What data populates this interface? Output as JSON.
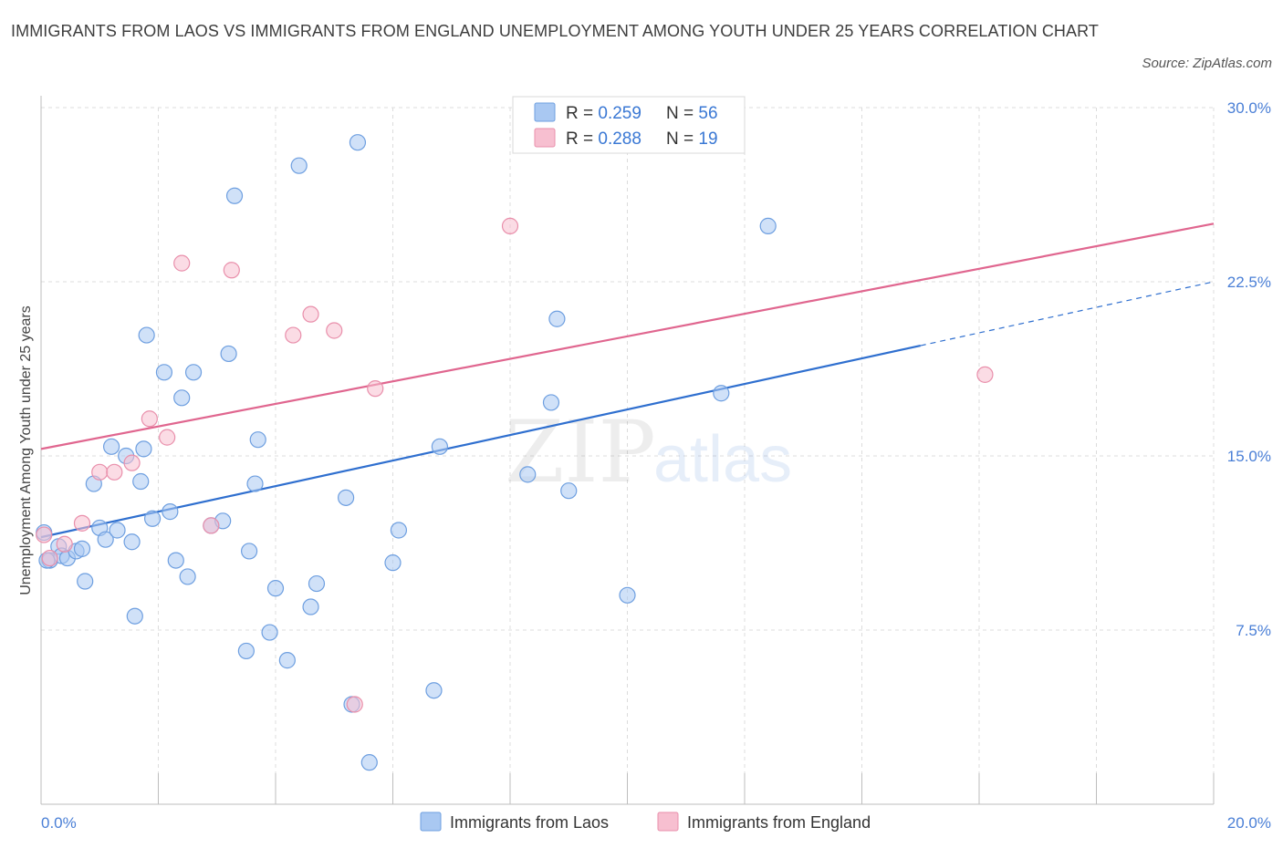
{
  "title": "IMMIGRANTS FROM LAOS VS IMMIGRANTS FROM ENGLAND UNEMPLOYMENT AMONG YOUTH UNDER 25 YEARS CORRELATION CHART",
  "source": "Source: ZipAtlas.com",
  "watermark": {
    "zip": "ZIP",
    "atlas": "atlas"
  },
  "colors": {
    "laos_fill": "#a9c8f2",
    "laos_stroke": "#6e9fe0",
    "laos_line": "#2f6fcf",
    "england_fill": "#f7bfd0",
    "england_stroke": "#e98fab",
    "england_line": "#e0668f",
    "tick_label": "#4a7fd6",
    "grid": "#dcdcdc"
  },
  "legend": {
    "rows": [
      {
        "series": "laos",
        "r_label": "R = ",
        "r_value": "0.259",
        "n_label": "N = ",
        "n_value": "56"
      },
      {
        "series": "england",
        "r_label": "R = ",
        "r_value": "0.288",
        "n_label": "N = ",
        "n_value": "19"
      }
    ]
  },
  "bottom_legend": [
    "Immigrants from Laos",
    "Immigrants from England"
  ],
  "chart_data": {
    "type": "scatter",
    "title": "IMMIGRANTS FROM LAOS VS IMMIGRANTS FROM ENGLAND UNEMPLOYMENT AMONG YOUTH UNDER 25 YEARS CORRELATION CHART",
    "xlabel": "",
    "ylabel": "Unemployment Among Youth under 25 years",
    "xlim": [
      0,
      20
    ],
    "ylim": [
      0,
      30
    ],
    "x_tick_labels": [
      "0.0%",
      "20.0%"
    ],
    "y_ticks": [
      7.5,
      15.0,
      22.5,
      30.0
    ],
    "y_tick_labels": [
      "7.5%",
      "15.0%",
      "22.5%",
      "30.0%"
    ],
    "grid": true,
    "legend_position": "top-center",
    "series": [
      {
        "name": "Immigrants from Laos",
        "key": "laos",
        "points": [
          [
            0.05,
            11.7
          ],
          [
            0.15,
            10.5
          ],
          [
            0.3,
            11.1
          ],
          [
            0.35,
            10.7
          ],
          [
            0.45,
            10.6
          ],
          [
            0.6,
            10.9
          ],
          [
            0.7,
            11.0
          ],
          [
            0.75,
            9.6
          ],
          [
            0.9,
            13.8
          ],
          [
            1.0,
            11.9
          ],
          [
            1.1,
            11.4
          ],
          [
            1.2,
            15.4
          ],
          [
            1.3,
            11.8
          ],
          [
            1.45,
            15.0
          ],
          [
            1.55,
            11.3
          ],
          [
            1.6,
            8.1
          ],
          [
            1.7,
            13.9
          ],
          [
            1.75,
            15.3
          ],
          [
            1.8,
            20.2
          ],
          [
            1.9,
            12.3
          ],
          [
            2.1,
            18.6
          ],
          [
            2.2,
            12.6
          ],
          [
            2.3,
            10.5
          ],
          [
            2.4,
            17.5
          ],
          [
            2.5,
            9.8
          ],
          [
            2.6,
            18.6
          ],
          [
            2.9,
            12.0
          ],
          [
            3.1,
            12.2
          ],
          [
            3.2,
            19.4
          ],
          [
            3.3,
            26.2
          ],
          [
            3.5,
            6.6
          ],
          [
            3.55,
            10.9
          ],
          [
            3.65,
            13.8
          ],
          [
            3.7,
            15.7
          ],
          [
            3.9,
            7.4
          ],
          [
            4.0,
            9.3
          ],
          [
            4.2,
            6.2
          ],
          [
            4.4,
            27.5
          ],
          [
            4.6,
            8.5
          ],
          [
            4.7,
            9.5
          ],
          [
            5.2,
            13.2
          ],
          [
            5.3,
            4.3
          ],
          [
            5.4,
            28.5
          ],
          [
            5.6,
            1.8
          ],
          [
            6.0,
            10.4
          ],
          [
            6.1,
            11.8
          ],
          [
            6.7,
            4.9
          ],
          [
            6.8,
            15.4
          ],
          [
            8.3,
            14.2
          ],
          [
            8.7,
            17.3
          ],
          [
            8.8,
            20.9
          ],
          [
            9.0,
            13.5
          ],
          [
            10.0,
            9.0
          ],
          [
            11.6,
            17.7
          ],
          [
            12.4,
            24.9
          ],
          [
            0.1,
            10.5
          ]
        ],
        "trend": {
          "x": [
            0,
            20
          ],
          "y": [
            11.5,
            22.5
          ],
          "solid_until_x": 15.0
        }
      },
      {
        "name": "Immigrants from England",
        "key": "england",
        "points": [
          [
            0.05,
            11.6
          ],
          [
            0.15,
            10.6
          ],
          [
            0.4,
            11.2
          ],
          [
            0.7,
            12.1
          ],
          [
            1.0,
            14.3
          ],
          [
            1.25,
            14.3
          ],
          [
            1.55,
            14.7
          ],
          [
            1.85,
            16.6
          ],
          [
            2.15,
            15.8
          ],
          [
            2.4,
            23.3
          ],
          [
            2.9,
            12.0
          ],
          [
            3.25,
            23.0
          ],
          [
            4.3,
            20.2
          ],
          [
            4.6,
            21.1
          ],
          [
            5.0,
            20.4
          ],
          [
            5.35,
            4.3
          ],
          [
            5.7,
            17.9
          ],
          [
            8.0,
            24.9
          ],
          [
            16.1,
            18.5
          ]
        ],
        "trend": {
          "x": [
            0,
            20
          ],
          "y": [
            15.3,
            25.0
          ],
          "solid_until_x": 20
        }
      }
    ]
  }
}
